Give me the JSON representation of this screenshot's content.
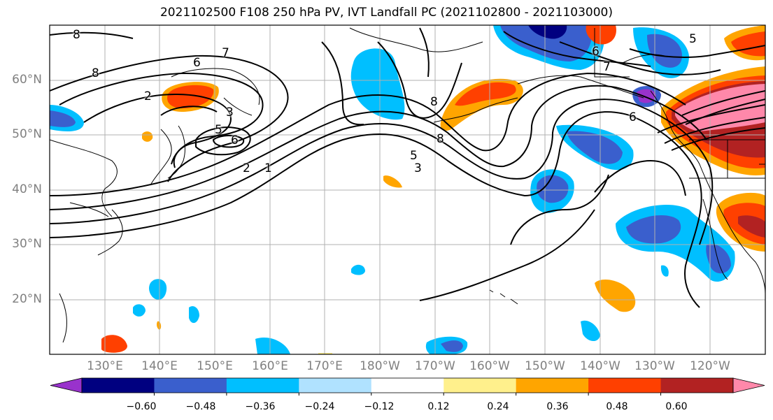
{
  "title": "2021102500 F108 250 hPa PV, IVT Landfall PC (2021102800 - 2021103000)",
  "map": {
    "lat_labels": [
      "60°N",
      "50°N",
      "40°N",
      "30°N",
      "20°N"
    ],
    "lon_labels": [
      "130°E",
      "140°E",
      "150°E",
      "160°E",
      "170°E",
      "180°W",
      "170°W",
      "160°W",
      "150°W",
      "140°W",
      "130°W",
      "120°W"
    ],
    "contour_labels": [
      "8",
      "7",
      "6",
      "8",
      "2",
      "3",
      "5",
      "6",
      "2",
      "1",
      "5",
      "3",
      "8",
      "8",
      "6",
      "7",
      "5",
      "6"
    ]
  },
  "colorbar": {
    "tick_labels": [
      "−0.60",
      "−0.48",
      "−0.36",
      "−0.24",
      "−0.12",
      "0.12",
      "0.24",
      "0.36",
      "0.48",
      "0.60"
    ],
    "colors": [
      "#9932cc",
      "#000080",
      "#3a5fcd",
      "#00bfff",
      "#b0e2ff",
      "#ffffff",
      "#fff08c",
      "#ffa500",
      "#ff4000",
      "#b22222",
      "#ff88aa"
    ]
  }
}
